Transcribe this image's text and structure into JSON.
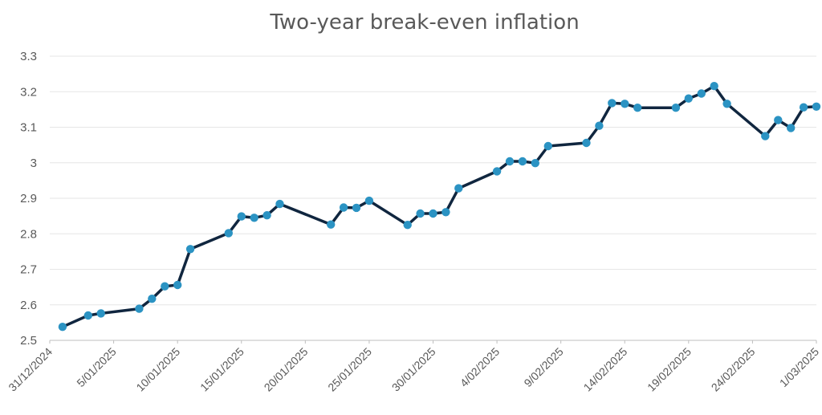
{
  "chart_data": {
    "type": "line",
    "title": "Two-year break-even inflation",
    "xlabel": "",
    "ylabel": "",
    "ylim": [
      2.5,
      3.3
    ],
    "yticks": [
      "2.5",
      "2.6",
      "2.7",
      "2.8",
      "2.9",
      "3",
      "3.1",
      "3.2",
      "3.3"
    ],
    "ytick_values": [
      2.5,
      2.6,
      2.7,
      2.8,
      2.9,
      3.0,
      3.1,
      3.2,
      3.3
    ],
    "xlim": [
      "2024-12-31",
      "2025-03-01"
    ],
    "xticks": [
      "31/12/2024",
      "5/01/2025",
      "10/01/2025",
      "15/01/2025",
      "20/01/2025",
      "25/01/2025",
      "30/01/2025",
      "4/02/2025",
      "9/02/2025",
      "14/02/2025",
      "19/02/2025",
      "24/02/2025",
      "1/03/2025"
    ],
    "xtick_dates": [
      "2024-12-31",
      "2025-01-05",
      "2025-01-10",
      "2025-01-15",
      "2025-01-20",
      "2025-01-25",
      "2025-01-30",
      "2025-02-04",
      "2025-02-09",
      "2025-02-14",
      "2025-02-19",
      "2025-02-24",
      "2025-03-01"
    ],
    "grid": true,
    "colors": {
      "line": "#10263f",
      "marker": "#2b93c3",
      "grid": "#e6e6e6",
      "text": "#595959"
    },
    "series": [
      {
        "x": [
          "2025-01-01",
          "2025-01-03",
          "2025-01-04",
          "2025-01-07",
          "2025-01-08",
          "2025-01-09",
          "2025-01-10",
          "2025-01-11",
          "2025-01-14",
          "2025-01-15",
          "2025-01-16",
          "2025-01-17",
          "2025-01-18",
          "2025-01-22",
          "2025-01-23",
          "2025-01-24",
          "2025-01-25",
          "2025-01-28",
          "2025-01-29",
          "2025-01-30",
          "2025-01-31",
          "2025-02-01",
          "2025-02-04",
          "2025-02-05",
          "2025-02-06",
          "2025-02-07",
          "2025-02-08",
          "2025-02-11",
          "2025-02-12",
          "2025-02-13",
          "2025-02-14",
          "2025-02-15",
          "2025-02-18",
          "2025-02-19",
          "2025-02-20",
          "2025-02-21",
          "2025-02-22",
          "2025-02-25",
          "2025-02-26",
          "2025-02-27",
          "2025-02-28",
          "2025-03-01"
        ],
        "values": [
          2.538,
          2.57,
          2.576,
          2.589,
          2.617,
          2.652,
          2.656,
          2.757,
          2.802,
          2.849,
          2.845,
          2.852,
          2.884,
          2.826,
          2.874,
          2.873,
          2.893,
          2.825,
          2.857,
          2.857,
          2.861,
          2.928,
          2.976,
          3.004,
          3.004,
          2.999,
          3.047,
          3.056,
          3.104,
          3.168,
          3.166,
          3.155,
          3.155,
          3.181,
          3.195,
          3.216,
          3.166,
          3.075,
          3.12,
          3.098,
          3.156,
          3.158
        ]
      }
    ]
  }
}
